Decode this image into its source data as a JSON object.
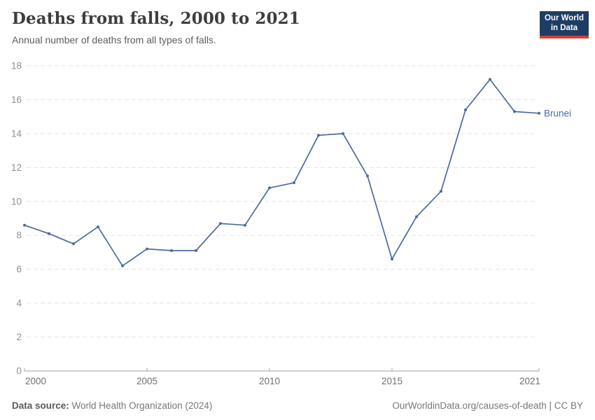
{
  "header": {
    "title": "Deaths from falls, 2000 to 2021",
    "subtitle": "Annual number of deaths from all types of falls."
  },
  "logo": {
    "line1": "Our World",
    "line2": "in Data",
    "bg_color": "#1d3d63",
    "accent_color": "#d63e33"
  },
  "chart_data": {
    "type": "line",
    "title": "Deaths from falls, 2000 to 2021",
    "xlabel": "",
    "ylabel": "",
    "xlim": [
      2000,
      2021
    ],
    "ylim": [
      0,
      18
    ],
    "x_ticks": [
      2000,
      2005,
      2010,
      2015,
      2021
    ],
    "y_ticks": [
      0,
      2,
      4,
      6,
      8,
      10,
      12,
      14,
      16,
      18
    ],
    "grid": "horizontal-dashed",
    "legend": "end-of-line-label",
    "series": [
      {
        "name": "Brunei",
        "color": "#4c6a9c",
        "x": [
          2000,
          2001,
          2002,
          2003,
          2004,
          2005,
          2006,
          2007,
          2008,
          2009,
          2010,
          2011,
          2012,
          2013,
          2014,
          2015,
          2016,
          2017,
          2018,
          2019,
          2020,
          2021
        ],
        "values": [
          8.6,
          8.1,
          7.5,
          8.5,
          6.2,
          7.2,
          7.1,
          7.1,
          8.7,
          8.6,
          10.8,
          11.1,
          13.9,
          14.0,
          11.5,
          6.6,
          9.1,
          10.6,
          15.4,
          17.2,
          15.3,
          15.2
        ]
      }
    ]
  },
  "footer": {
    "source_label": "Data source:",
    "source_value": "World Health Organization (2024)",
    "credit": "OurWorldinData.org/causes-of-death | CC BY"
  }
}
